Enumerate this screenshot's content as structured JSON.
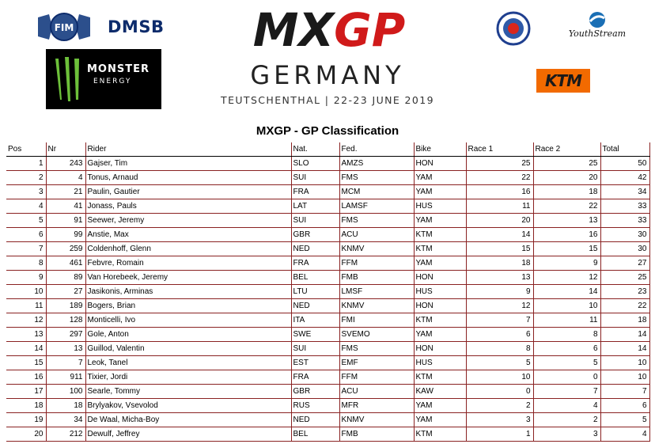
{
  "header": {
    "fim_label": "FIM",
    "dmsb_label": "DMSB",
    "monster_label": "MONSTER",
    "monster_sub": "ENERGY",
    "mxgp_logo": "MXGP",
    "event_country": "GERMANY",
    "event_venue_date": "TEUTSCHENTHAL | 22-23 JUNE 2019",
    "youthstream_label": "YouthStream",
    "ktm_label": "KTM",
    "colors": {
      "mxgp_red": "#d01a1a",
      "ktm_orange": "#f26a00",
      "table_border": "#8a2222"
    }
  },
  "title": "MXGP - GP Classification",
  "columns": [
    "Pos",
    "Nr",
    "Rider",
    "Nat.",
    "Fed.",
    "Bike",
    "Race 1",
    "Race 2",
    "Total"
  ],
  "rows": [
    [
      "1",
      "243",
      "Gajser, Tim",
      "SLO",
      "AMZS",
      "HON",
      "25",
      "25",
      "50"
    ],
    [
      "2",
      "4",
      "Tonus, Arnaud",
      "SUI",
      "FMS",
      "YAM",
      "22",
      "20",
      "42"
    ],
    [
      "3",
      "21",
      "Paulin, Gautier",
      "FRA",
      "MCM",
      "YAM",
      "16",
      "18",
      "34"
    ],
    [
      "4",
      "41",
      "Jonass, Pauls",
      "LAT",
      "LAMSF",
      "HUS",
      "11",
      "22",
      "33"
    ],
    [
      "5",
      "91",
      "Seewer, Jeremy",
      "SUI",
      "FMS",
      "YAM",
      "20",
      "13",
      "33"
    ],
    [
      "6",
      "99",
      "Anstie, Max",
      "GBR",
      "ACU",
      "KTM",
      "14",
      "16",
      "30"
    ],
    [
      "7",
      "259",
      "Coldenhoff, Glenn",
      "NED",
      "KNMV",
      "KTM",
      "15",
      "15",
      "30"
    ],
    [
      "8",
      "461",
      "Febvre, Romain",
      "FRA",
      "FFM",
      "YAM",
      "18",
      "9",
      "27"
    ],
    [
      "9",
      "89",
      "Van Horebeek, Jeremy",
      "BEL",
      "FMB",
      "HON",
      "13",
      "12",
      "25"
    ],
    [
      "10",
      "27",
      "Jasikonis, Arminas",
      "LTU",
      "LMSF",
      "HUS",
      "9",
      "14",
      "23"
    ],
    [
      "11",
      "189",
      "Bogers, Brian",
      "NED",
      "KNMV",
      "HON",
      "12",
      "10",
      "22"
    ],
    [
      "12",
      "128",
      "Monticelli, Ivo",
      "ITA",
      "FMI",
      "KTM",
      "7",
      "11",
      "18"
    ],
    [
      "13",
      "297",
      "Gole, Anton",
      "SWE",
      "SVEMO",
      "YAM",
      "6",
      "8",
      "14"
    ],
    [
      "14",
      "13",
      "Guillod, Valentin",
      "SUI",
      "FMS",
      "HON",
      "8",
      "6",
      "14"
    ],
    [
      "15",
      "7",
      "Leok, Tanel",
      "EST",
      "EMF",
      "HUS",
      "5",
      "5",
      "10"
    ],
    [
      "16",
      "911",
      "Tixier, Jordi",
      "FRA",
      "FFM",
      "KTM",
      "10",
      "0",
      "10"
    ],
    [
      "17",
      "100",
      "Searle, Tommy",
      "GBR",
      "ACU",
      "KAW",
      "0",
      "7",
      "7"
    ],
    [
      "18",
      "18",
      "Brylyakov, Vsevolod",
      "RUS",
      "MFR",
      "YAM",
      "2",
      "4",
      "6"
    ],
    [
      "19",
      "34",
      "De Waal, Micha-Boy",
      "NED",
      "KNMV",
      "YAM",
      "3",
      "2",
      "5"
    ],
    [
      "20",
      "212",
      "Dewulf, Jeffrey",
      "BEL",
      "FMB",
      "KTM",
      "1",
      "3",
      "4"
    ]
  ]
}
